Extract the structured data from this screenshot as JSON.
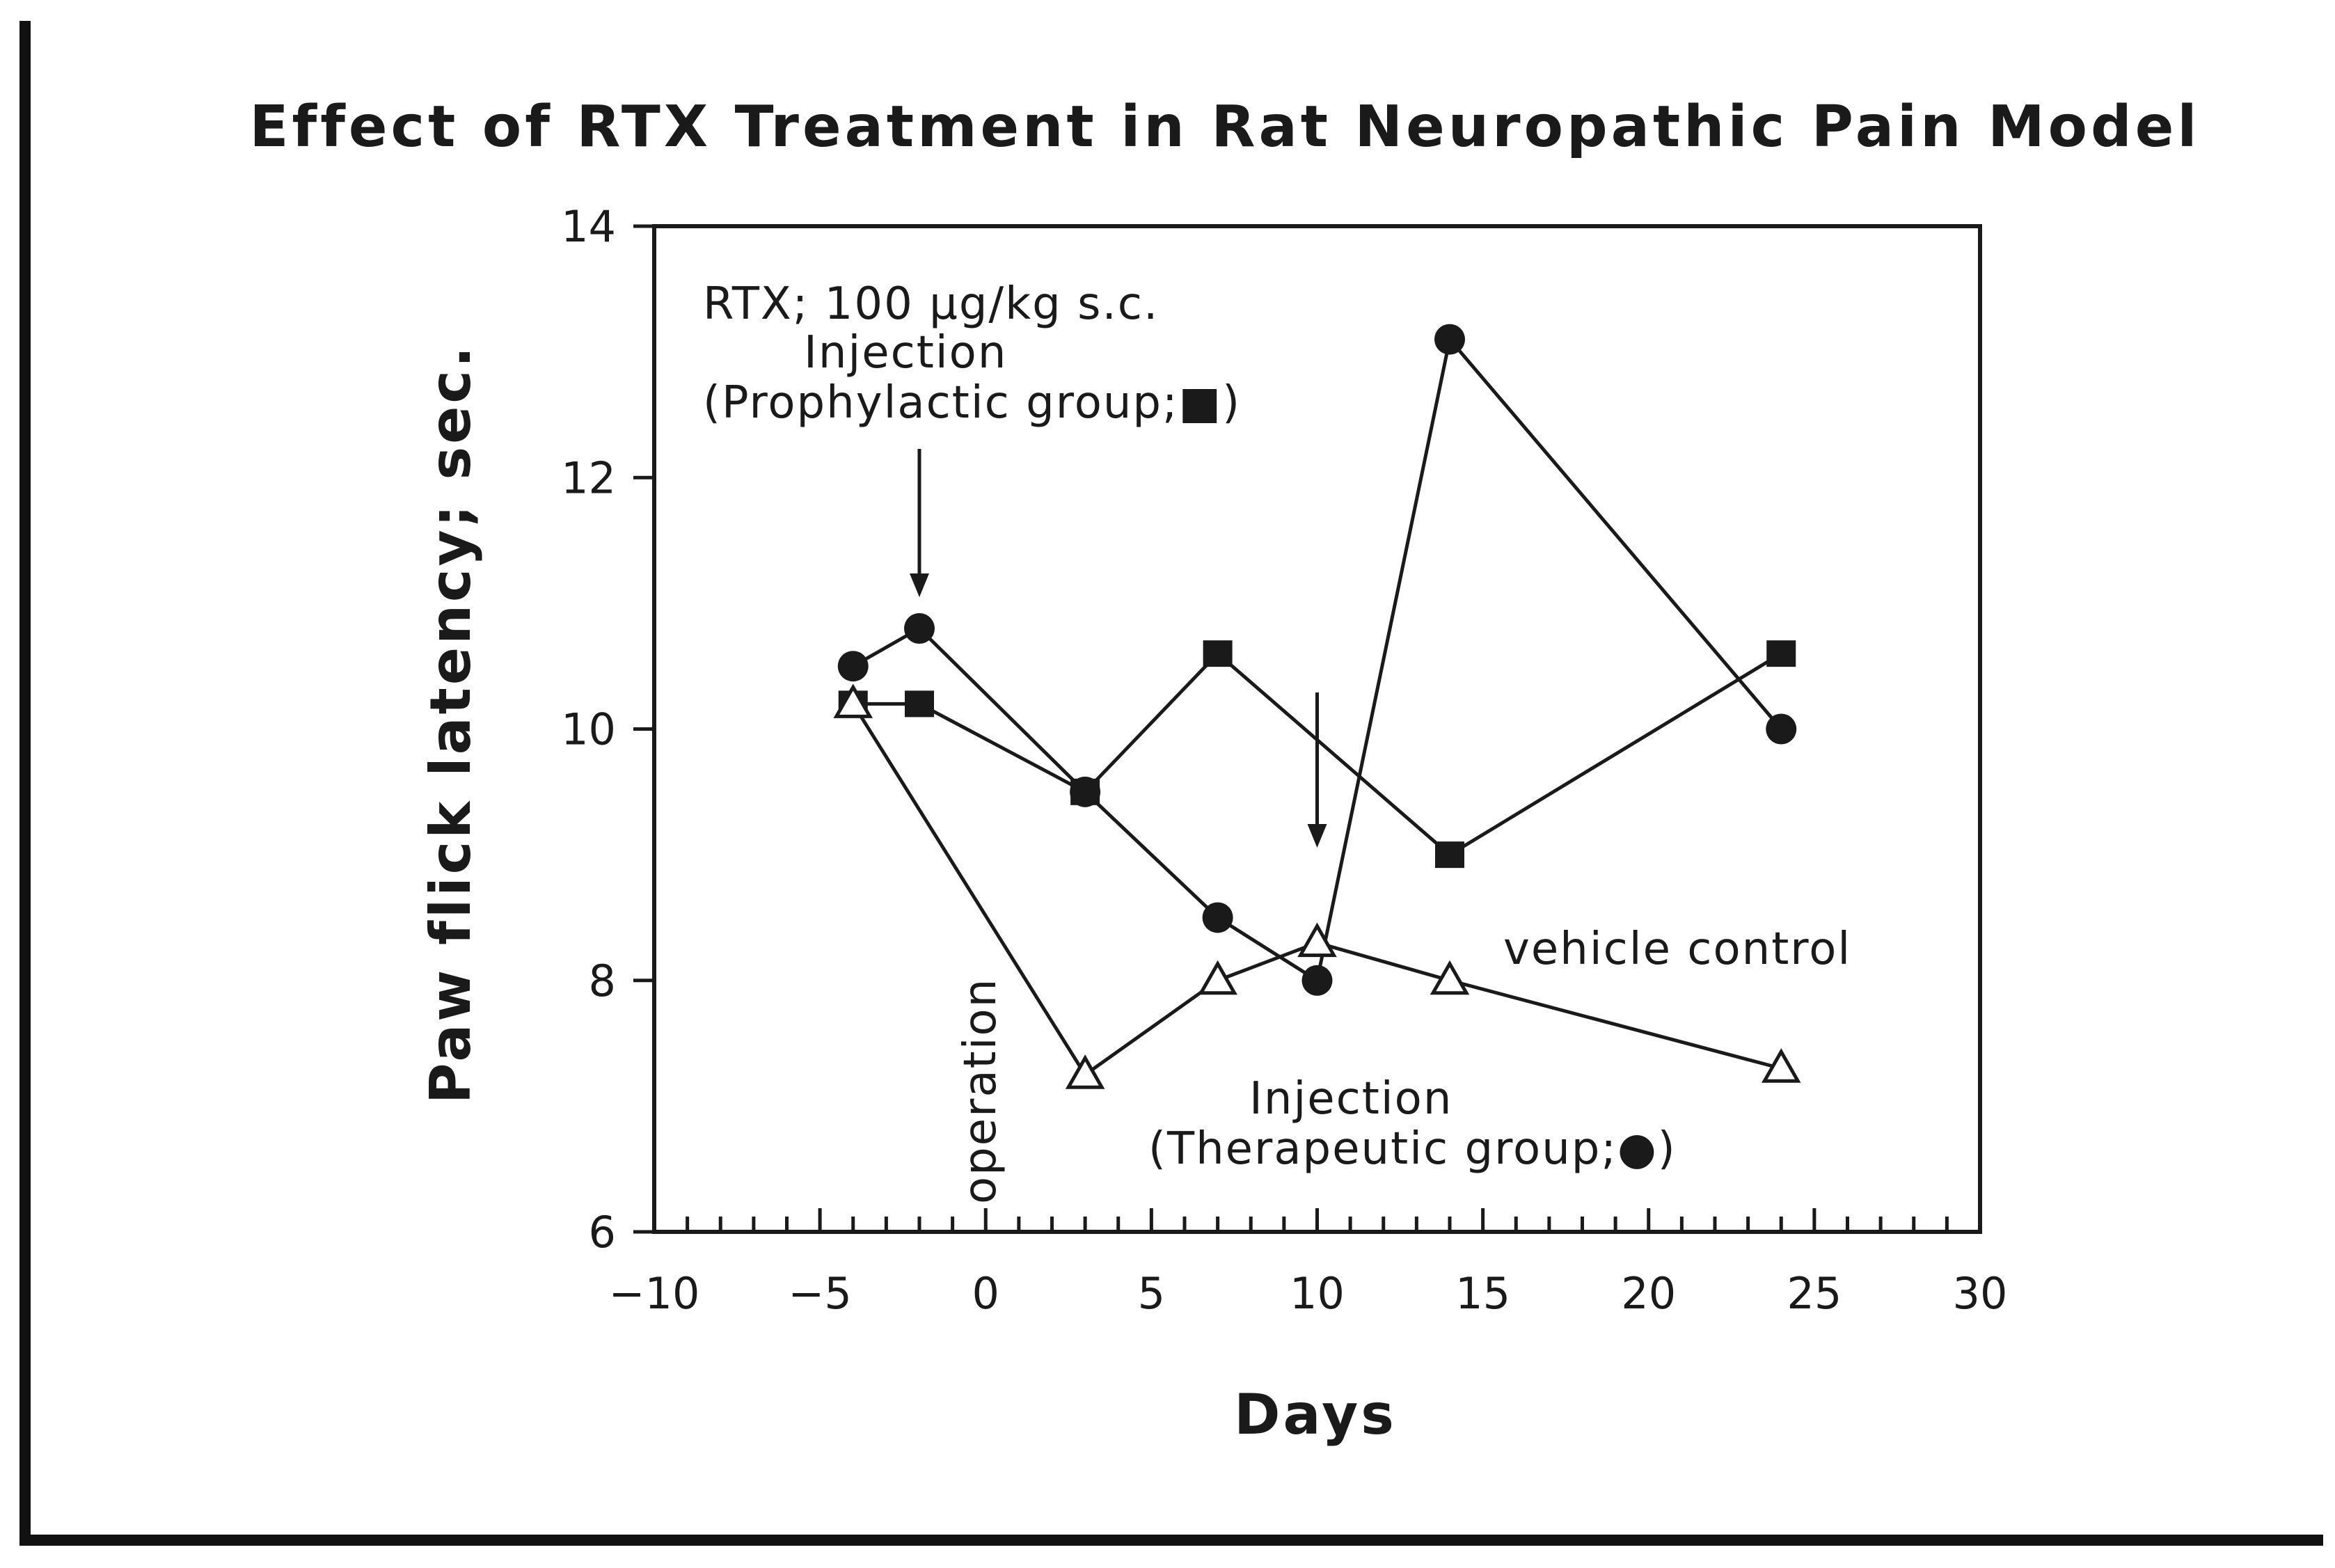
{
  "chart_data": {
    "type": "line",
    "title": "Effect of RTX Treatment in Rat Neuropathic Pain Model",
    "xlabel": "Days",
    "ylabel": "Paw flick latency; sec.",
    "xlim": [
      -10,
      30
    ],
    "ylim": [
      6,
      14
    ],
    "x_ticks": [
      -10,
      -5,
      0,
      5,
      10,
      15,
      20,
      25,
      30
    ],
    "x_tick_labels": [
      "−10",
      "−5",
      "0",
      "5",
      "10",
      "15",
      "20",
      "25",
      "30"
    ],
    "y_ticks": [
      6,
      8,
      10,
      12,
      14
    ],
    "y_tick_labels": [
      "6",
      "8",
      "10",
      "12",
      "14"
    ],
    "grid": false,
    "series": [
      {
        "marker": "filled-square",
        "x": [
          -4,
          -2,
          3,
          7,
          14,
          24
        ],
        "y": [
          10.2,
          10.2,
          9.5,
          10.6,
          9.0,
          10.6
        ]
      },
      {
        "marker": "filled-circle",
        "x": [
          -4,
          -2,
          3,
          7,
          10,
          14,
          24
        ],
        "y": [
          10.5,
          10.8,
          9.5,
          8.5,
          8.0,
          13.1,
          10.0
        ]
      },
      {
        "marker": "open-triangle",
        "x": [
          -4,
          3,
          7,
          10,
          14,
          24
        ],
        "y": [
          10.2,
          7.25,
          8.0,
          8.3,
          8.0,
          7.3
        ]
      }
    ],
    "annotations": {
      "prophylactic_line1": "RTX; 100 µg/kg s.c.",
      "prophylactic_line2": "Injection",
      "prophylactic_line3": "(Prophylactic group;■)",
      "operation": "operation",
      "vehicle": "vehicle control",
      "therapeutic_line1": "Injection",
      "therapeutic_line2": "(Therapeutic group;●)"
    }
  },
  "colors": {
    "background": "#ffffff",
    "ink": "#1a1a1a"
  }
}
